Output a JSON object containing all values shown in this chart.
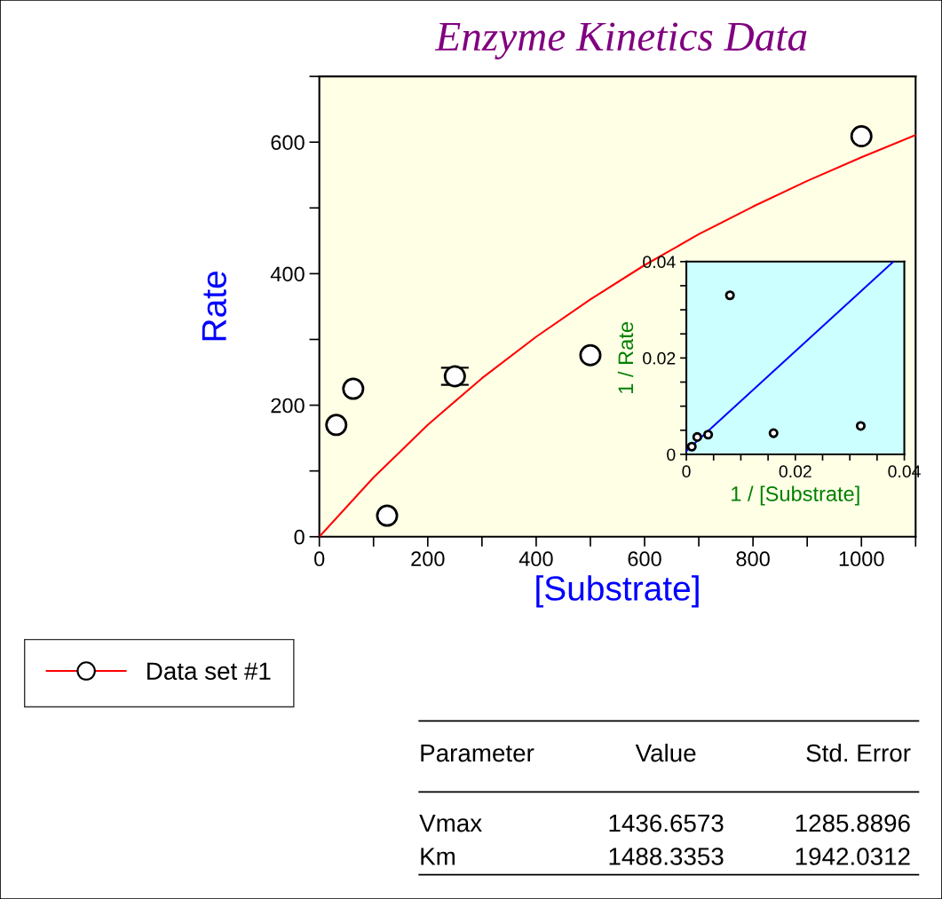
{
  "chart_data": [
    {
      "type": "scatter",
      "title": "Enzyme Kinetics Data",
      "xlabel": "[Substrate]",
      "ylabel": "Rate",
      "xlim": [
        0,
        1100
      ],
      "xticks": [
        0,
        {
          "value": 100,
          "label": null
        },
        200,
        {
          "value": 300,
          "label": null
        },
        400,
        {
          "value": 500,
          "label": null
        },
        600,
        {
          "value": 700,
          "label": null
        },
        800,
        {
          "value": 900,
          "label": null
        },
        1000,
        {
          "value": 1100,
          "label": null
        }
      ],
      "ylim": [
        0,
        700
      ],
      "yticks": [
        0,
        {
          "value": 100,
          "label": null
        },
        200,
        {
          "value": 300,
          "label": null
        },
        400,
        {
          "value": 500,
          "label": null
        },
        600,
        {
          "value": 700,
          "label": null
        }
      ],
      "legend": "bottom left",
      "grid": false,
      "series": [
        {
          "name": "Data set #1",
          "marker": "circle",
          "color": "#000000",
          "x": [
            31.25,
            62.5,
            125,
            250,
            500,
            1000
          ],
          "values": [
            170,
            225,
            32,
            244,
            276,
            609
          ],
          "errors": [
            null,
            null,
            null,
            13,
            null,
            null
          ]
        },
        {
          "type": "line",
          "marker": "none",
          "color": "#ff0000",
          "x": [
            0,
            100,
            200,
            300,
            400,
            500,
            600,
            700,
            800,
            900,
            1000,
            1100
          ],
          "values": [
            0,
            90,
            170,
            241,
            304,
            361,
            413,
            460,
            502,
            541,
            577,
            611
          ]
        }
      ],
      "annotations": [
        "Parameter",
        "Value",
        "Std. Error",
        "Vmax",
        "1436.6573",
        "1285.8896",
        "Km",
        "1488.3353",
        "1942.0312"
      ]
    },
    {
      "type": "scatter",
      "xlabel": "1 / [Substrate]",
      "ylabel": "1 / Rate",
      "xlim": [
        0,
        0.04
      ],
      "xticks": [
        0,
        {
          "value": 0.005,
          "label": null
        },
        {
          "value": 0.01,
          "label": null
        },
        {
          "value": 0.015,
          "label": null
        },
        0.02,
        {
          "value": 0.025,
          "label": null
        },
        {
          "value": 0.03,
          "label": null
        },
        {
          "value": 0.035,
          "label": null
        },
        0.04
      ],
      "ylim": [
        0,
        0.04
      ],
      "yticks": [
        0,
        {
          "value": 0.005,
          "label": null
        },
        {
          "value": 0.01,
          "label": null
        },
        {
          "value": 0.015,
          "label": null
        },
        0.02,
        {
          "value": 0.025,
          "label": null
        },
        {
          "value": 0.03,
          "label": null
        },
        {
          "value": 0.035,
          "label": null
        },
        0.04
      ],
      "grid": false,
      "series": [
        {
          "marker": "circle",
          "color": "#000000",
          "x": [
            0.032,
            0.016,
            0.008,
            0.004,
            0.002,
            0.001
          ],
          "values": [
            0.0059,
            0.0044,
            0.033,
            0.0041,
            0.0036,
            0.0016
          ]
        },
        {
          "type": "line",
          "marker": "none",
          "color": "#0000ff",
          "x": [
            0,
            0.038
          ],
          "values": [
            0.0007,
            0.04
          ]
        }
      ]
    }
  ]
}
